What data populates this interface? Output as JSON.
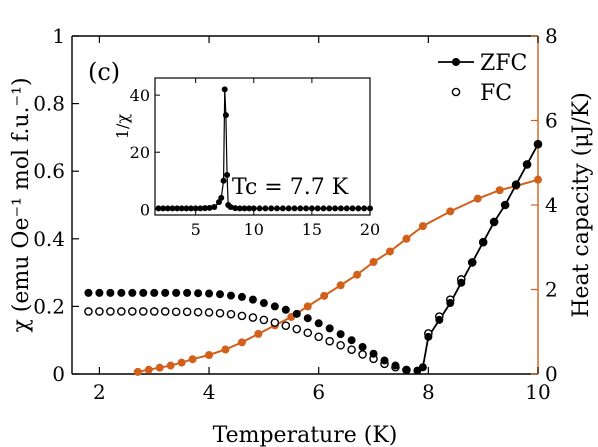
{
  "chart_data": {
    "type": "scatter",
    "panel_label": "(c)",
    "xlabel": "Temperature (K)",
    "ylabel_left": "χ (emu Oe⁻¹ mol f.u.⁻¹)",
    "ylabel_right": "Heat capacity (μJ/K)",
    "xlim": [
      1.5,
      10
    ],
    "ylim_left": [
      0,
      1
    ],
    "ylim_right": [
      0,
      8
    ],
    "xticks": [
      2,
      4,
      6,
      8,
      10
    ],
    "yticks_left": [
      0,
      0.2,
      0.4,
      0.6,
      0.8,
      1
    ],
    "yticks_left_labels": [
      "0",
      "0.2",
      "0.4",
      "0.6",
      "0.8",
      "1"
    ],
    "yticks_right": [
      0,
      2,
      4,
      6,
      8
    ],
    "legend_position": "top-right",
    "series": [
      {
        "name": "ZFC",
        "axis": "left",
        "marker": "filled-circle",
        "color": "#000000",
        "x": [
          1.8,
          2.0,
          2.2,
          2.4,
          2.6,
          2.8,
          3.0,
          3.2,
          3.4,
          3.6,
          3.8,
          4.0,
          4.2,
          4.4,
          4.6,
          4.8,
          5.0,
          5.2,
          5.4,
          5.6,
          5.8,
          6.0,
          6.2,
          6.4,
          6.6,
          6.8,
          7.0,
          7.2,
          7.4,
          7.6,
          7.8,
          7.9,
          8.0,
          8.2,
          8.4,
          8.6,
          8.8,
          9.0,
          9.2,
          9.4,
          9.6,
          9.8,
          10.0
        ],
        "y": [
          0.24,
          0.24,
          0.24,
          0.24,
          0.24,
          0.24,
          0.24,
          0.24,
          0.24,
          0.24,
          0.239,
          0.238,
          0.236,
          0.232,
          0.228,
          0.22,
          0.21,
          0.2,
          0.19,
          0.178,
          0.165,
          0.15,
          0.135,
          0.118,
          0.1,
          0.08,
          0.06,
          0.04,
          0.025,
          0.012,
          0.01,
          0.02,
          0.11,
          0.16,
          0.21,
          0.27,
          0.33,
          0.39,
          0.45,
          0.5,
          0.56,
          0.62,
          0.68
        ]
      },
      {
        "name": "FC",
        "axis": "left",
        "marker": "open-circle",
        "color": "#000000",
        "x": [
          1.8,
          2.0,
          2.2,
          2.4,
          2.6,
          2.8,
          3.0,
          3.2,
          3.4,
          3.6,
          3.8,
          4.0,
          4.2,
          4.4,
          4.6,
          4.8,
          5.0,
          5.2,
          5.4,
          5.6,
          5.8,
          6.0,
          6.2,
          6.4,
          6.6,
          6.8,
          7.0,
          7.2,
          7.4,
          7.6,
          8.0,
          8.2,
          8.4,
          8.6,
          8.8,
          9.0,
          9.2,
          9.4,
          9.6,
          9.8,
          10.0
        ],
        "y": [
          0.185,
          0.185,
          0.185,
          0.185,
          0.185,
          0.185,
          0.185,
          0.185,
          0.184,
          0.184,
          0.183,
          0.182,
          0.18,
          0.177,
          0.172,
          0.167,
          0.16,
          0.152,
          0.143,
          0.133,
          0.122,
          0.11,
          0.097,
          0.085,
          0.072,
          0.058,
          0.045,
          0.03,
          0.02,
          0.012,
          0.12,
          0.17,
          0.22,
          0.28,
          0.33,
          0.39,
          0.45,
          0.5,
          0.56,
          0.62,
          0.68
        ]
      },
      {
        "name": "Heat capacity",
        "axis": "right",
        "marker": "filled-circle-line",
        "color": "#D2601A",
        "x": [
          2.7,
          2.9,
          3.1,
          3.3,
          3.5,
          3.7,
          4.0,
          4.3,
          4.6,
          4.9,
          5.2,
          5.5,
          5.8,
          6.1,
          6.4,
          6.7,
          7.0,
          7.3,
          7.6,
          7.9,
          8.4,
          8.9,
          9.3,
          9.6,
          10.0
        ],
        "y": [
          0.05,
          0.1,
          0.15,
          0.2,
          0.27,
          0.35,
          0.45,
          0.58,
          0.75,
          0.95,
          1.15,
          1.35,
          1.6,
          1.85,
          2.1,
          2.35,
          2.65,
          2.9,
          3.2,
          3.5,
          3.85,
          4.15,
          4.35,
          4.45,
          4.6
        ]
      }
    ],
    "inset": {
      "ylabel": "1/χ",
      "xlim": [
        1.5,
        20
      ],
      "ylim": [
        -2,
        46
      ],
      "xticks": [
        5,
        10,
        15,
        20
      ],
      "yticks": [
        0,
        20,
        40
      ],
      "annotation": "Tc = 7.7 K",
      "annotation_color": "#7B2C8F",
      "x": [
        1.8,
        2.2,
        2.6,
        3.0,
        3.4,
        3.8,
        4.2,
        4.6,
        5.0,
        5.4,
        5.8,
        6.2,
        6.6,
        7.0,
        7.2,
        7.4,
        7.5,
        7.6,
        7.7,
        7.8,
        8.0,
        8.4,
        8.8,
        9.2,
        9.6,
        10.0,
        10.5,
        11.0,
        11.5,
        12.0,
        12.5,
        13.0,
        13.5,
        14.0,
        14.5,
        15.0,
        15.5,
        16.0,
        16.5,
        17.0,
        17.5,
        18.0,
        18.5,
        19.0,
        19.5,
        20.0
      ],
      "y": [
        0.3,
        0.3,
        0.3,
        0.3,
        0.3,
        0.3,
        0.3,
        0.3,
        0.3,
        0.3,
        0.4,
        0.5,
        0.8,
        2.5,
        4,
        10,
        42,
        33,
        12,
        1.5,
        0.8,
        0.4,
        0.3,
        0.3,
        0.3,
        0.3,
        0.3,
        0.3,
        0.3,
        0.3,
        0.3,
        0.3,
        0.3,
        0.3,
        0.3,
        0.3,
        0.3,
        0.3,
        0.3,
        0.3,
        0.3,
        0.3,
        0.3,
        0.3,
        0.3,
        0.3
      ]
    }
  }
}
